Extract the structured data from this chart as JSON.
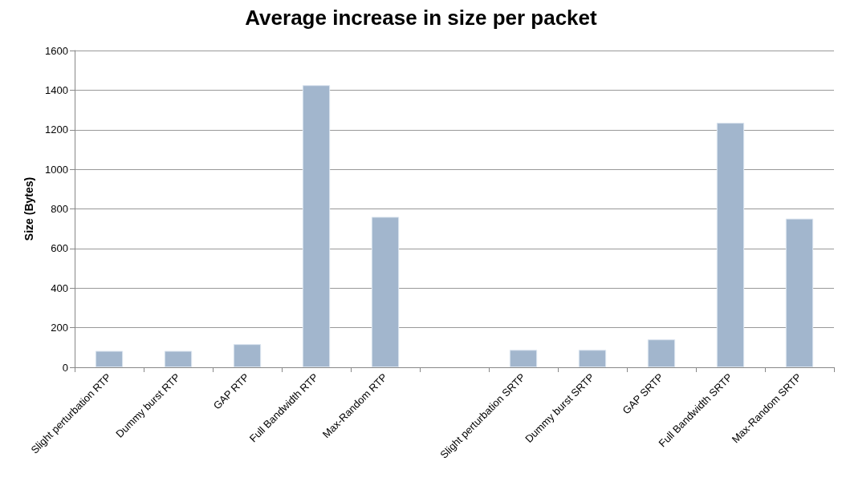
{
  "chart_data": {
    "type": "bar",
    "title": "Average increase in size per packet",
    "ylabel": "Size (Bytes)",
    "categories": [
      "Slight perturbation RTP",
      "Dummy burst RTP",
      "GAP RTP",
      "Full Bandwidth RTP",
      "Max-Random RTP",
      null,
      "Slight perturbation SRTP",
      "Dummy burst SRTP",
      "GAP SRTP",
      "Full Bandwidth SRTP",
      "Max-Random SRTP"
    ],
    "values": [
      83,
      83,
      117,
      1425,
      760,
      null,
      88,
      88,
      141,
      1235,
      751
    ],
    "color": "#a2b6cd",
    "ylim": [
      0,
      1600
    ],
    "yticks": [
      0,
      200,
      400,
      600,
      800,
      1000,
      1200,
      1400,
      1600
    ],
    "grid": true
  }
}
